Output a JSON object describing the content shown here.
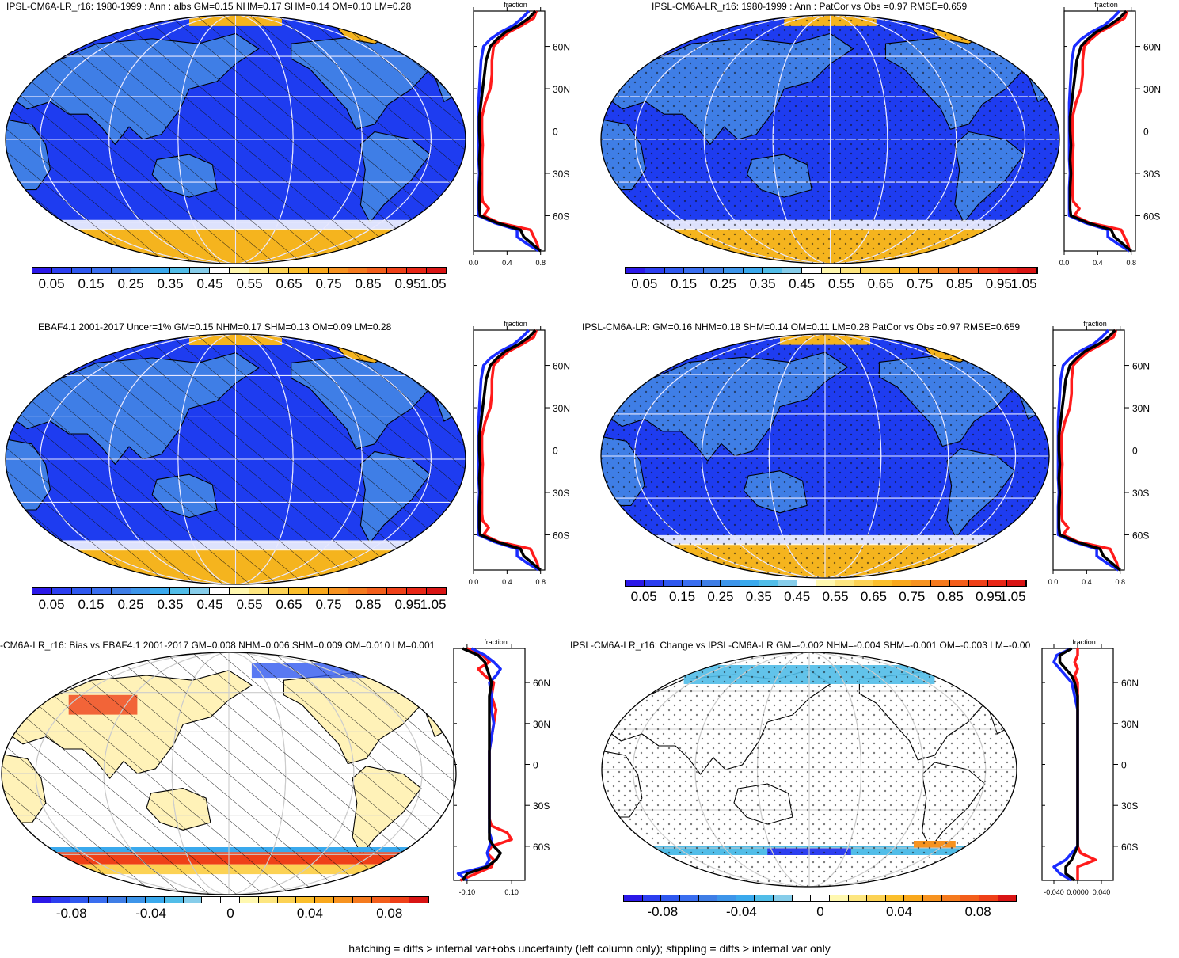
{
  "caption": "hatching = diffs > internal var+obs uncertainty (left column only); stippling = diffs > internal var only",
  "colors": {
    "ocean_low": "#1e3cf0",
    "land_mid": "#3f7ee6",
    "snow": "#f5b41e",
    "zonal_red": "#ff1a1a",
    "zonal_blue": "#1a2cff",
    "zonal_black": "#000000"
  },
  "abs_scale": {
    "labels": [
      "0.05",
      "0.15",
      "0.25",
      "0.35",
      "0.45",
      "0.55",
      "0.65",
      "0.75",
      "0.85",
      "0.95",
      "1.05"
    ],
    "colors": [
      "#2b18e8",
      "#2c3ef0",
      "#2f58ef",
      "#3a6ef0",
      "#3f7ee6",
      "#3d95ea",
      "#3aa9ed",
      "#51bde8",
      "#86cdea",
      "#ffffff",
      "#fff8b0",
      "#fde680",
      "#fcd254",
      "#fbbf2c",
      "#f9a81c",
      "#f79320",
      "#f57a1e",
      "#f35e1b",
      "#ef4018",
      "#e82616",
      "#d91414"
    ]
  },
  "diff_scale": {
    "labels": [
      "-0.08",
      "-0.04",
      "0",
      "0.04",
      "0.08"
    ],
    "colors": [
      "#2b18e8",
      "#2c3ef0",
      "#2f58ef",
      "#3a6ef0",
      "#3f7ee6",
      "#3d95ea",
      "#3aa9ed",
      "#51bde8",
      "#86cdea",
      "#ffffff",
      "#ffffff",
      "#fff8b0",
      "#fde680",
      "#fcd254",
      "#fbbf2c",
      "#f9a81c",
      "#f79320",
      "#f57a1e",
      "#f35e1b",
      "#ef4018",
      "#d91414"
    ]
  },
  "lat_labels": [
    "60N",
    "30N",
    "0",
    "30S",
    "60S"
  ],
  "zonal_axis_title": "fraction",
  "panels": [
    {
      "id": "p1",
      "title": "IPSL-CM6A-LR_r16: 1980-1999 : Ann : albs GM=0.15 NHM=0.17 SHM=0.14 OM=0.10 LM=0.28",
      "scale": "abs",
      "pattern": "hatch",
      "xticks": [
        "0.0",
        "0.4",
        "0.8"
      ]
    },
    {
      "id": "p2",
      "title": "IPSL-CM6A-LR_r16: 1980-1999 : Ann : PatCor vs Obs =0.97 RMSE=0.659",
      "scale": "abs",
      "pattern": "stipple",
      "xticks": [
        "0.0",
        "0.4",
        "0.8"
      ]
    },
    {
      "id": "p3",
      "title": "EBAF4.1 2001-2017 Uncer=1% GM=0.15 NHM=0.17 SHM=0.13 OM=0.09 LM=0.28",
      "scale": "abs",
      "pattern": "hatch",
      "xticks": [
        "0.0",
        "0.4",
        "0.8"
      ]
    },
    {
      "id": "p4",
      "title": "IPSL-CM6A-LR: GM=0.16 NHM=0.18 SHM=0.14 OM=0.11 LM=0.28 PatCor vs Obs =0.97 RMSE=0.659",
      "scale": "abs",
      "pattern": "stipple",
      "xticks": [
        "0.0",
        "0.4",
        "0.8"
      ]
    },
    {
      "id": "p5",
      "title": "-CM6A-LR_r16: Bias vs EBAF4.1 2001-2017 GM=0.008 NHM=0.006 SHM=0.009 OM=0.010 LM=0.001",
      "scale": "diff",
      "pattern": "hatch",
      "xticks": [
        "-0.10",
        "0.10"
      ]
    },
    {
      "id": "p6",
      "title": "IPSL-CM6A-LR_r16: Change vs IPSL-CM6A-LR GM=-0.002 NHM=-0.004 SHM=-0.001 OM=-0.003 LM=-0.00",
      "scale": "diff",
      "pattern": "stipple",
      "xticks": [
        "-0.040",
        "0.0000",
        "0.040"
      ]
    }
  ],
  "zonal_profiles_abs": {
    "lats": [
      -85,
      -80,
      -75,
      -70,
      -65,
      -60,
      -55,
      -50,
      -45,
      -40,
      -30,
      -20,
      -10,
      0,
      10,
      20,
      30,
      40,
      50,
      60,
      65,
      70,
      75,
      80,
      85
    ],
    "red": [
      0.78,
      0.76,
      0.72,
      0.68,
      0.3,
      0.12,
      0.18,
      0.11,
      0.1,
      0.1,
      0.1,
      0.1,
      0.11,
      0.1,
      0.1,
      0.14,
      0.2,
      0.22,
      0.22,
      0.24,
      0.32,
      0.42,
      0.58,
      0.72,
      0.75
    ],
    "blue": [
      0.78,
      0.64,
      0.52,
      0.52,
      0.25,
      0.06,
      0.06,
      0.06,
      0.06,
      0.06,
      0.07,
      0.06,
      0.06,
      0.06,
      0.06,
      0.06,
      0.07,
      0.08,
      0.09,
      0.12,
      0.2,
      0.32,
      0.48,
      0.58,
      0.66
    ],
    "black": [
      0.8,
      0.7,
      0.6,
      0.56,
      0.28,
      0.08,
      0.07,
      0.07,
      0.07,
      0.07,
      0.08,
      0.07,
      0.08,
      0.07,
      0.07,
      0.09,
      0.11,
      0.13,
      0.15,
      0.2,
      0.28,
      0.38,
      0.54,
      0.66,
      0.74
    ]
  },
  "zonal_profiles_bias": {
    "lats": [
      -85,
      -80,
      -75,
      -70,
      -65,
      -60,
      -55,
      -50,
      -45,
      -40,
      -30,
      -20,
      -10,
      0,
      10,
      20,
      30,
      40,
      50,
      60,
      65,
      70,
      75,
      80,
      85
    ],
    "red": [
      -0.13,
      -0.06,
      0.01,
      0.02,
      -0.01,
      0.01,
      0.1,
      0.08,
      0.01,
      0.0,
      0.0,
      0.0,
      0.0,
      0.0,
      0.0,
      0.01,
      0.02,
      0.03,
      0.01,
      0.02,
      -0.02,
      -0.05,
      0.0,
      -0.03,
      -0.1
    ],
    "blue": [
      -0.1,
      -0.14,
      -0.02,
      0.0,
      -0.01,
      0.0,
      0.01,
      0.0,
      0.0,
      0.0,
      0.0,
      0.0,
      0.0,
      0.0,
      0.0,
      0.01,
      0.02,
      0.01,
      0.01,
      0.0,
      0.03,
      0.05,
      0.02,
      -0.02,
      -0.08
    ],
    "black": [
      -0.12,
      -0.1,
      -0.01,
      0.03,
      0.05,
      0.02,
      0.0,
      0.0,
      0.0,
      0.0,
      0.0,
      0.0,
      0.0,
      0.0,
      0.0,
      0.0,
      0.0,
      0.0,
      0.0,
      0.01,
      0.0,
      -0.01,
      -0.02,
      -0.05,
      -0.12
    ]
  },
  "zonal_profiles_change": {
    "lats": [
      -85,
      -80,
      -75,
      -70,
      -65,
      -60,
      -55,
      -50,
      -45,
      -40,
      -30,
      -20,
      -10,
      0,
      10,
      20,
      30,
      40,
      50,
      60,
      65,
      70,
      75,
      80,
      85
    ],
    "red": [
      0.0,
      0.0,
      0.0,
      0.03,
      0.005,
      0.0,
      0.0,
      0.0,
      0.0,
      0.0,
      0.0,
      0.0,
      0.0,
      0.0,
      0.0,
      0.0,
      0.0,
      0.0,
      0.0,
      0.0,
      -0.005,
      0.0,
      -0.005,
      0.0,
      0.0
    ],
    "blue": [
      -0.01,
      -0.03,
      -0.04,
      -0.02,
      -0.01,
      0.0,
      0.0,
      0.0,
      0.0,
      0.0,
      0.0,
      0.0,
      0.0,
      0.0,
      0.0,
      0.0,
      0.0,
      0.0,
      -0.005,
      -0.01,
      -0.02,
      -0.03,
      -0.04,
      -0.035,
      -0.01
    ],
    "black": [
      -0.005,
      -0.02,
      -0.02,
      -0.01,
      -0.005,
      0.0,
      0.0,
      0.0,
      0.0,
      0.0,
      0.0,
      0.0,
      0.0,
      0.0,
      0.0,
      0.0,
      0.0,
      0.0,
      0.0,
      -0.005,
      -0.01,
      -0.02,
      -0.03,
      -0.03,
      -0.01
    ]
  }
}
